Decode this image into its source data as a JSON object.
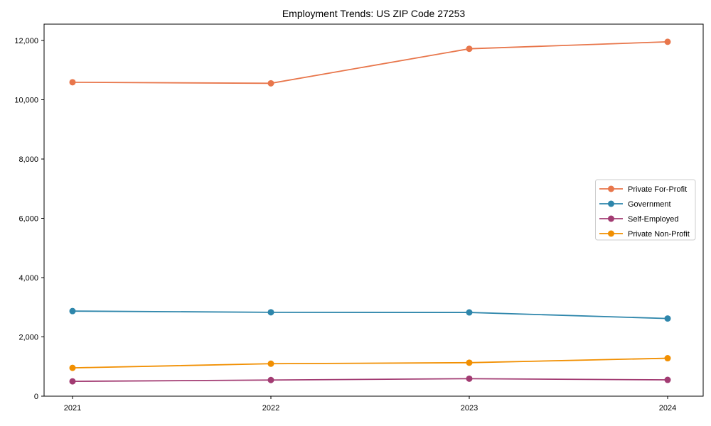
{
  "title": "Employment Trends: US ZIP Code 27253",
  "chart_data": {
    "type": "line",
    "title": "Employment Trends: US ZIP Code 27253",
    "categories": [
      "2021",
      "2022",
      "2023",
      "2024"
    ],
    "series": [
      {
        "name": "Private For-Profit",
        "color": "#E8764B",
        "values": [
          10590,
          10555,
          11720,
          11955
        ]
      },
      {
        "name": "Government",
        "color": "#2E86AB",
        "values": [
          2870,
          2830,
          2825,
          2620
        ]
      },
      {
        "name": "Self-Employed",
        "color": "#A23B72",
        "values": [
          500,
          545,
          590,
          550
        ]
      },
      {
        "name": "Private Non-Profit",
        "color": "#F18F01",
        "values": [
          955,
          1095,
          1130,
          1280
        ]
      }
    ],
    "xlabel": "",
    "ylabel": "",
    "ylim": [
      0,
      12000
    ],
    "yticks": [
      0,
      2000,
      4000,
      6000,
      8000,
      10000,
      12000
    ],
    "ytick_labels": [
      "0",
      "2,000",
      "4,000",
      "6,000",
      "8,000",
      "10,000",
      "12,000"
    ],
    "grid": false,
    "legend_position": "center right",
    "marker": "circle",
    "frame": {
      "spine_color": "#000000",
      "background": "#ffffff"
    },
    "legend_style": {
      "border_color": "#cccccc",
      "background": "#ffffff"
    }
  }
}
